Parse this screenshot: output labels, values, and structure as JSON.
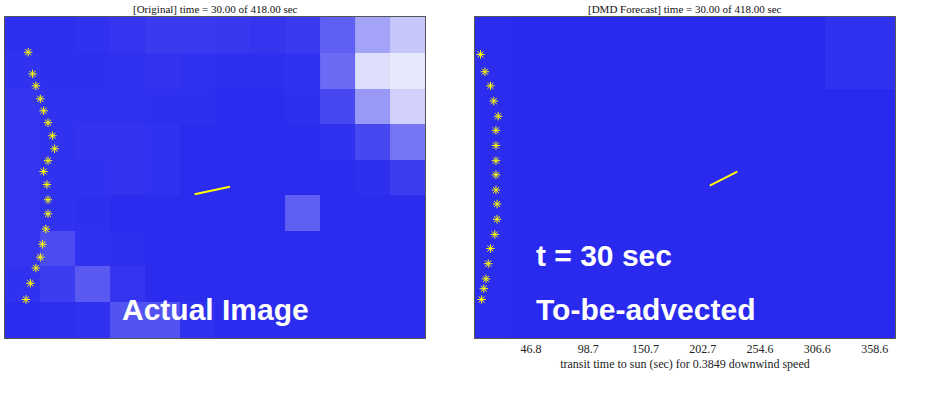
{
  "chart_data": [
    {
      "type": "heatmap",
      "title": "[Original] time = 30.00 of 418.00 sec",
      "tick_labels": false,
      "xlim": [
        -4,
        377
      ],
      "ylim": [
        -0.5,
        295.5
      ],
      "x": [
        12,
        44,
        75,
        107,
        139,
        171,
        202,
        234,
        266,
        298,
        329,
        361
      ],
      "y": [
        16,
        49,
        82,
        115,
        148,
        180,
        213,
        246,
        279
      ],
      "zlim": [
        0,
        1
      ],
      "z": [
        [
          0.08,
          0.09,
          0.1,
          0.25,
          0.25,
          0.1,
          0.08,
          0.08,
          0.08,
          0.08,
          0.08,
          0.08
        ],
        [
          0.1,
          0.15,
          0.28,
          0.12,
          0.08,
          0.08,
          0.08,
          0.08,
          0.08,
          0.08,
          0.08,
          0.08
        ],
        [
          0.12,
          0.22,
          0.1,
          0.09,
          0.08,
          0.08,
          0.08,
          0.08,
          0.08,
          0.08,
          0.08,
          0.08
        ],
        [
          0.12,
          0.1,
          0.09,
          0.08,
          0.08,
          0.08,
          0.08,
          0.08,
          0.3,
          0.08,
          0.08,
          0.08
        ],
        [
          0.12,
          0.1,
          0.1,
          0.11,
          0.1,
          0.08,
          0.08,
          0.08,
          0.08,
          0.08,
          0.09,
          0.15
        ],
        [
          0.12,
          0.1,
          0.11,
          0.11,
          0.1,
          0.08,
          0.08,
          0.08,
          0.08,
          0.1,
          0.2,
          0.4
        ],
        [
          0.12,
          0.1,
          0.1,
          0.1,
          0.09,
          0.09,
          0.08,
          0.08,
          0.09,
          0.2,
          0.55,
          0.8
        ],
        [
          0.1,
          0.09,
          0.09,
          0.1,
          0.11,
          0.1,
          0.09,
          0.09,
          0.1,
          0.35,
          0.85,
          0.9
        ],
        [
          0.09,
          0.09,
          0.1,
          0.12,
          0.14,
          0.14,
          0.13,
          0.12,
          0.14,
          0.3,
          0.6,
          0.75
        ]
      ],
      "series": [
        {
          "type": "scatter",
          "marker": "asterisk",
          "color": "#ffff00",
          "x": [
            17,
            21,
            24,
            28,
            31,
            35,
            39,
            41,
            35,
            31,
            34,
            35,
            35,
            33,
            30,
            28,
            24,
            19,
            15
          ],
          "values": [
            263,
            243,
            232,
            220,
            209,
            198,
            186,
            174,
            163,
            153,
            141,
            127,
            114,
            100,
            86,
            74,
            64,
            50,
            35
          ]
        },
        {
          "type": "line",
          "color": "#ffff00",
          "x": [
            168,
            200
          ],
          "values": [
            132,
            139
          ]
        }
      ],
      "annotations": [
        "Actual Image"
      ]
    },
    {
      "type": "heatmap",
      "title": "[DMD Forecast] time = 30.00 of 418.00 sec",
      "tick_labels": "x",
      "xlabel": "transit time to sun (sec) for 0.3849 downwind speed",
      "xlim": [
        -4,
        377
      ],
      "ylim": [
        -0.5,
        295.5
      ],
      "xticks": [
        46.8,
        98.7,
        150.7,
        202.7,
        254.6,
        306.6,
        358.6
      ],
      "x": [
        12,
        44,
        75,
        107,
        139,
        171,
        202,
        234,
        266,
        298,
        329,
        361
      ],
      "y": [
        16,
        49,
        82,
        115,
        148,
        180,
        213,
        246,
        279
      ],
      "zlim": [
        0,
        1
      ],
      "z": [
        [
          0.08,
          0.07,
          0.07,
          0.07,
          0.07,
          0.07,
          0.07,
          0.07,
          0.07,
          0.07,
          0.07,
          0.07
        ],
        [
          0.08,
          0.07,
          0.07,
          0.07,
          0.07,
          0.07,
          0.07,
          0.07,
          0.07,
          0.07,
          0.07,
          0.07
        ],
        [
          0.08,
          0.07,
          0.07,
          0.07,
          0.07,
          0.07,
          0.07,
          0.07,
          0.07,
          0.07,
          0.07,
          0.07
        ],
        [
          0.08,
          0.07,
          0.07,
          0.07,
          0.07,
          0.07,
          0.07,
          0.07,
          0.07,
          0.07,
          0.07,
          0.07
        ],
        [
          0.08,
          0.07,
          0.07,
          0.07,
          0.07,
          0.07,
          0.07,
          0.07,
          0.07,
          0.07,
          0.07,
          0.07
        ],
        [
          0.08,
          0.07,
          0.07,
          0.07,
          0.07,
          0.07,
          0.07,
          0.07,
          0.07,
          0.07,
          0.07,
          0.07
        ],
        [
          0.08,
          0.07,
          0.07,
          0.07,
          0.07,
          0.07,
          0.07,
          0.07,
          0.07,
          0.07,
          0.07,
          0.07
        ],
        [
          0.08,
          0.07,
          0.07,
          0.07,
          0.07,
          0.07,
          0.07,
          0.07,
          0.07,
          0.07,
          0.1,
          0.1
        ],
        [
          0.08,
          0.07,
          0.07,
          0.07,
          0.07,
          0.07,
          0.07,
          0.07,
          0.07,
          0.07,
          0.1,
          0.1
        ]
      ],
      "series": [
        {
          "type": "scatter",
          "marker": "asterisk",
          "color": "#ffff00",
          "x": [
            1,
            5,
            10,
            13,
            17,
            15,
            15,
            15,
            15,
            15,
            16,
            16,
            14,
            10,
            8,
            6,
            4,
            2
          ],
          "values": [
            261,
            245,
            232,
            218,
            204,
            191,
            177,
            163,
            150,
            136,
            123,
            109,
            95,
            82,
            68,
            54,
            45,
            35
          ]
        },
        {
          "type": "line",
          "color": "#ffff00",
          "x": [
            209,
            234
          ],
          "values": [
            140,
            153
          ]
        }
      ],
      "annotations": [
        "t = 30 sec",
        "To-be-advected"
      ]
    }
  ]
}
